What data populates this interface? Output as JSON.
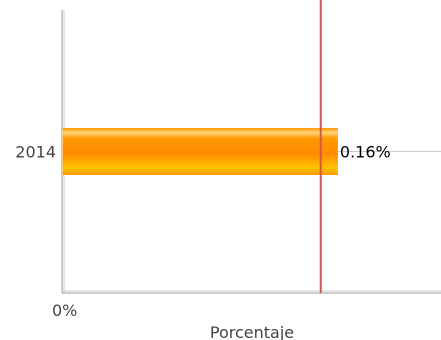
{
  "chart_data": {
    "type": "bar",
    "orientation": "horizontal",
    "categories": [
      "2014"
    ],
    "values": [
      0.16
    ],
    "value_format": "percent",
    "data_labels": [
      "0.16%"
    ],
    "x_tick_labels": [
      "0%"
    ],
    "xlabel": "Porcentaje",
    "ylabel": "",
    "xlim": [
      0,
      0.22
    ],
    "reference_line": {
      "value": 0.15,
      "label": "",
      "color": "#d9534f"
    },
    "grid": false,
    "legend": "none",
    "bar_gradient": [
      "#ffb300",
      "#ff8c00",
      "#ffcc33"
    ]
  }
}
